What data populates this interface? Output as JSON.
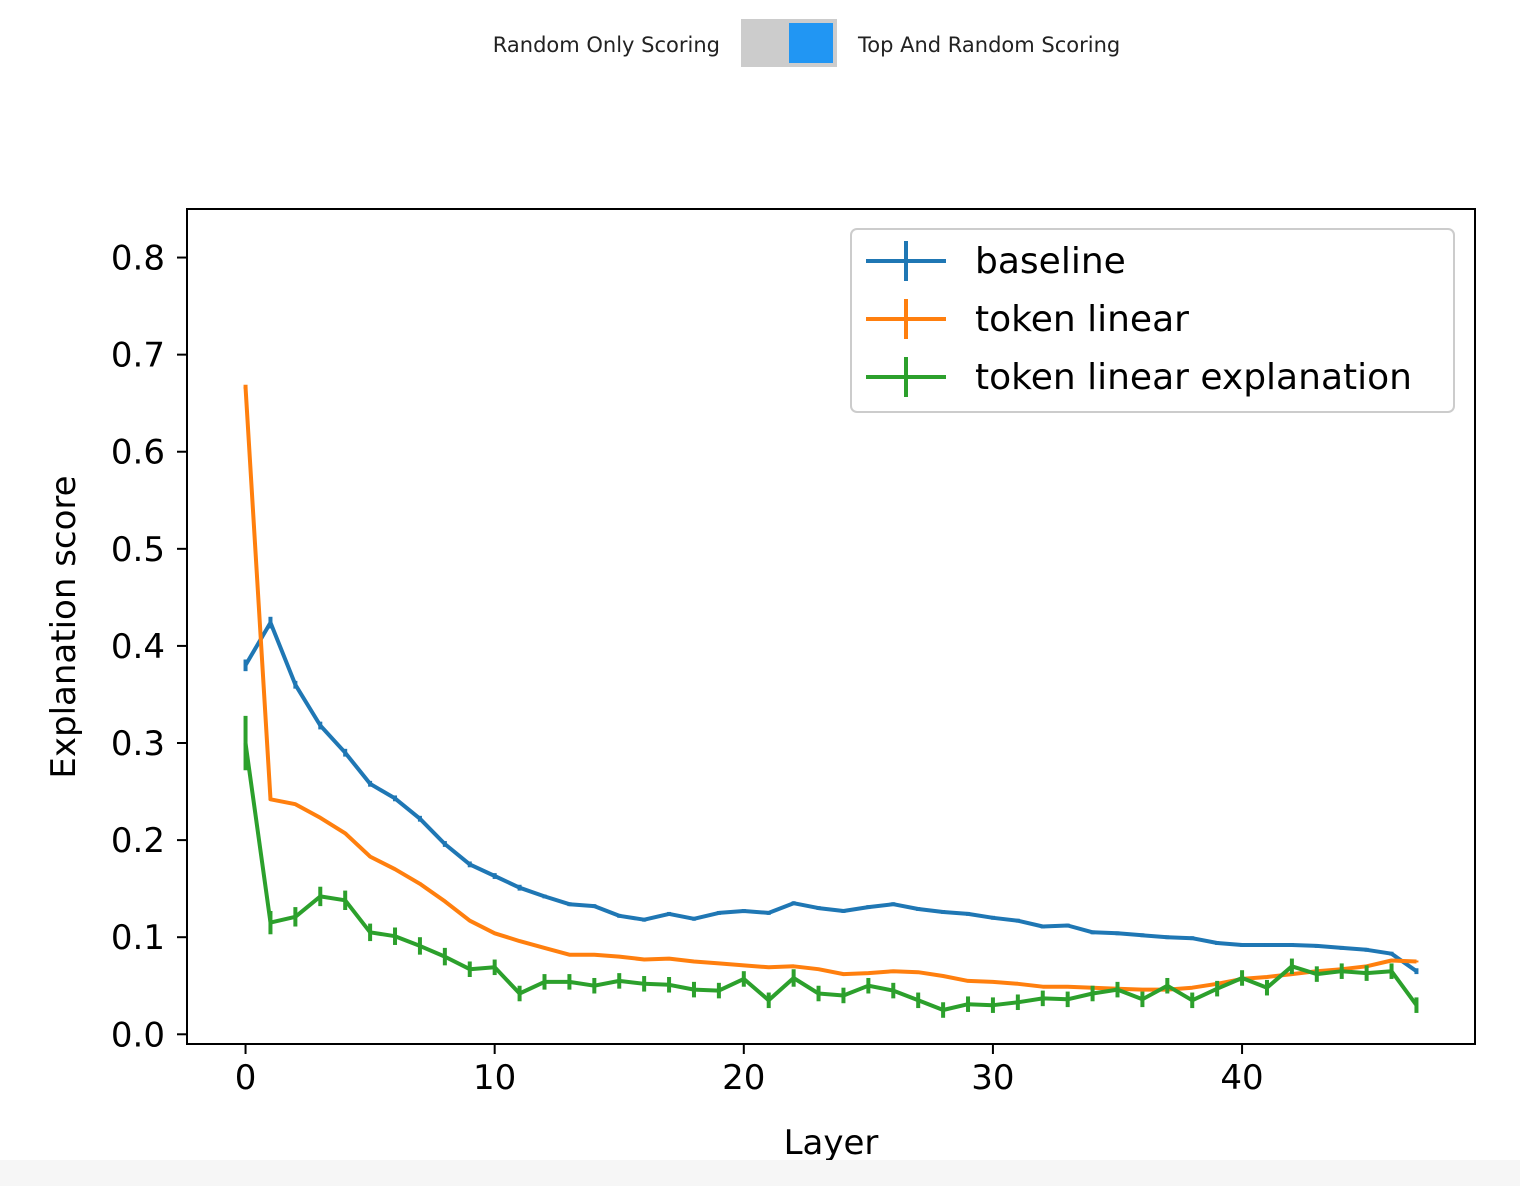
{
  "toggle": {
    "left_label": "Random Only Scoring",
    "right_label": "Top And Random Scoring",
    "state": "right",
    "track_color": "#cccccc",
    "knob_color": "#2196f3"
  },
  "chart_data": {
    "type": "line",
    "title": "",
    "xlabel": "Layer",
    "ylabel": "Explanation score",
    "xlim": [
      -2.35,
      49.35
    ],
    "ylim": [
      -0.01,
      0.85
    ],
    "xticks": [
      0,
      10,
      20,
      30,
      40
    ],
    "yticks": [
      0.0,
      0.1,
      0.2,
      0.3,
      0.4,
      0.5,
      0.6,
      0.7,
      0.8
    ],
    "grid": false,
    "legend_position": "top-right",
    "error_bars": true,
    "x": [
      0,
      1,
      2,
      3,
      4,
      5,
      6,
      7,
      8,
      9,
      10,
      11,
      12,
      13,
      14,
      15,
      16,
      17,
      18,
      19,
      20,
      21,
      22,
      23,
      24,
      25,
      26,
      27,
      28,
      29,
      30,
      31,
      32,
      33,
      34,
      35,
      36,
      37,
      38,
      39,
      40,
      41,
      42,
      43,
      44,
      45,
      46,
      47
    ],
    "series": [
      {
        "name": "baseline",
        "color": "#1f77b4",
        "values": [
          0.38,
          0.424,
          0.36,
          0.318,
          0.29,
          0.258,
          0.243,
          0.222,
          0.196,
          0.175,
          0.163,
          0.151,
          0.142,
          0.134,
          0.132,
          0.122,
          0.118,
          0.124,
          0.119,
          0.125,
          0.127,
          0.125,
          0.135,
          0.13,
          0.127,
          0.131,
          0.134,
          0.129,
          0.126,
          0.124,
          0.12,
          0.117,
          0.111,
          0.112,
          0.105,
          0.104,
          0.102,
          0.1,
          0.099,
          0.094,
          0.092,
          0.092,
          0.092,
          0.091,
          0.089,
          0.087,
          0.083,
          0.065
        ],
        "errors": [
          0.006,
          0.006,
          0.004,
          0.004,
          0.004,
          0.003,
          0.003,
          0.003,
          0.003,
          0.003,
          0.003,
          0.003,
          0.002,
          0.002,
          0.002,
          0.002,
          0.002,
          0.002,
          0.002,
          0.002,
          0.002,
          0.002,
          0.002,
          0.002,
          0.002,
          0.002,
          0.002,
          0.002,
          0.002,
          0.002,
          0.002,
          0.002,
          0.002,
          0.002,
          0.002,
          0.002,
          0.002,
          0.002,
          0.002,
          0.002,
          0.002,
          0.002,
          0.002,
          0.002,
          0.002,
          0.002,
          0.002,
          0.003
        ]
      },
      {
        "name": "token linear",
        "color": "#ff7f0e",
        "values": [
          0.667,
          0.242,
          0.237,
          0.223,
          0.207,
          0.183,
          0.17,
          0.155,
          0.137,
          0.117,
          0.104,
          0.096,
          0.089,
          0.082,
          0.082,
          0.08,
          0.077,
          0.078,
          0.075,
          0.073,
          0.071,
          0.069,
          0.07,
          0.067,
          0.062,
          0.063,
          0.065,
          0.064,
          0.06,
          0.055,
          0.054,
          0.052,
          0.049,
          0.049,
          0.048,
          0.047,
          0.046,
          0.046,
          0.048,
          0.052,
          0.057,
          0.059,
          0.062,
          0.065,
          0.067,
          0.07,
          0.076,
          0.075
        ],
        "errors": [
          0.002,
          0.001,
          0.001,
          0.001,
          0.001,
          0.001,
          0.001,
          0.001,
          0.001,
          0.001,
          0.001,
          0.001,
          0.001,
          0.001,
          0.001,
          0.001,
          0.001,
          0.001,
          0.001,
          0.001,
          0.001,
          0.001,
          0.001,
          0.001,
          0.001,
          0.001,
          0.001,
          0.001,
          0.001,
          0.001,
          0.001,
          0.001,
          0.001,
          0.001,
          0.001,
          0.001,
          0.001,
          0.001,
          0.001,
          0.001,
          0.001,
          0.001,
          0.001,
          0.001,
          0.001,
          0.001,
          0.001,
          0.001
        ]
      },
      {
        "name": "token linear explanation",
        "color": "#2ca02c",
        "values": [
          0.3,
          0.115,
          0.121,
          0.142,
          0.138,
          0.105,
          0.101,
          0.091,
          0.08,
          0.067,
          0.069,
          0.042,
          0.054,
          0.054,
          0.05,
          0.055,
          0.052,
          0.051,
          0.046,
          0.045,
          0.057,
          0.035,
          0.058,
          0.042,
          0.04,
          0.05,
          0.045,
          0.035,
          0.025,
          0.031,
          0.03,
          0.033,
          0.037,
          0.036,
          0.042,
          0.046,
          0.036,
          0.05,
          0.035,
          0.047,
          0.058,
          0.048,
          0.07,
          0.062,
          0.065,
          0.063,
          0.065,
          0.03
        ],
        "errors": [
          0.028,
          0.012,
          0.01,
          0.01,
          0.01,
          0.009,
          0.009,
          0.009,
          0.009,
          0.008,
          0.008,
          0.008,
          0.008,
          0.008,
          0.008,
          0.008,
          0.008,
          0.008,
          0.008,
          0.008,
          0.008,
          0.008,
          0.009,
          0.008,
          0.008,
          0.008,
          0.008,
          0.008,
          0.008,
          0.008,
          0.008,
          0.008,
          0.008,
          0.008,
          0.008,
          0.008,
          0.008,
          0.008,
          0.008,
          0.008,
          0.008,
          0.008,
          0.008,
          0.008,
          0.008,
          0.008,
          0.008,
          0.008
        ]
      }
    ]
  }
}
